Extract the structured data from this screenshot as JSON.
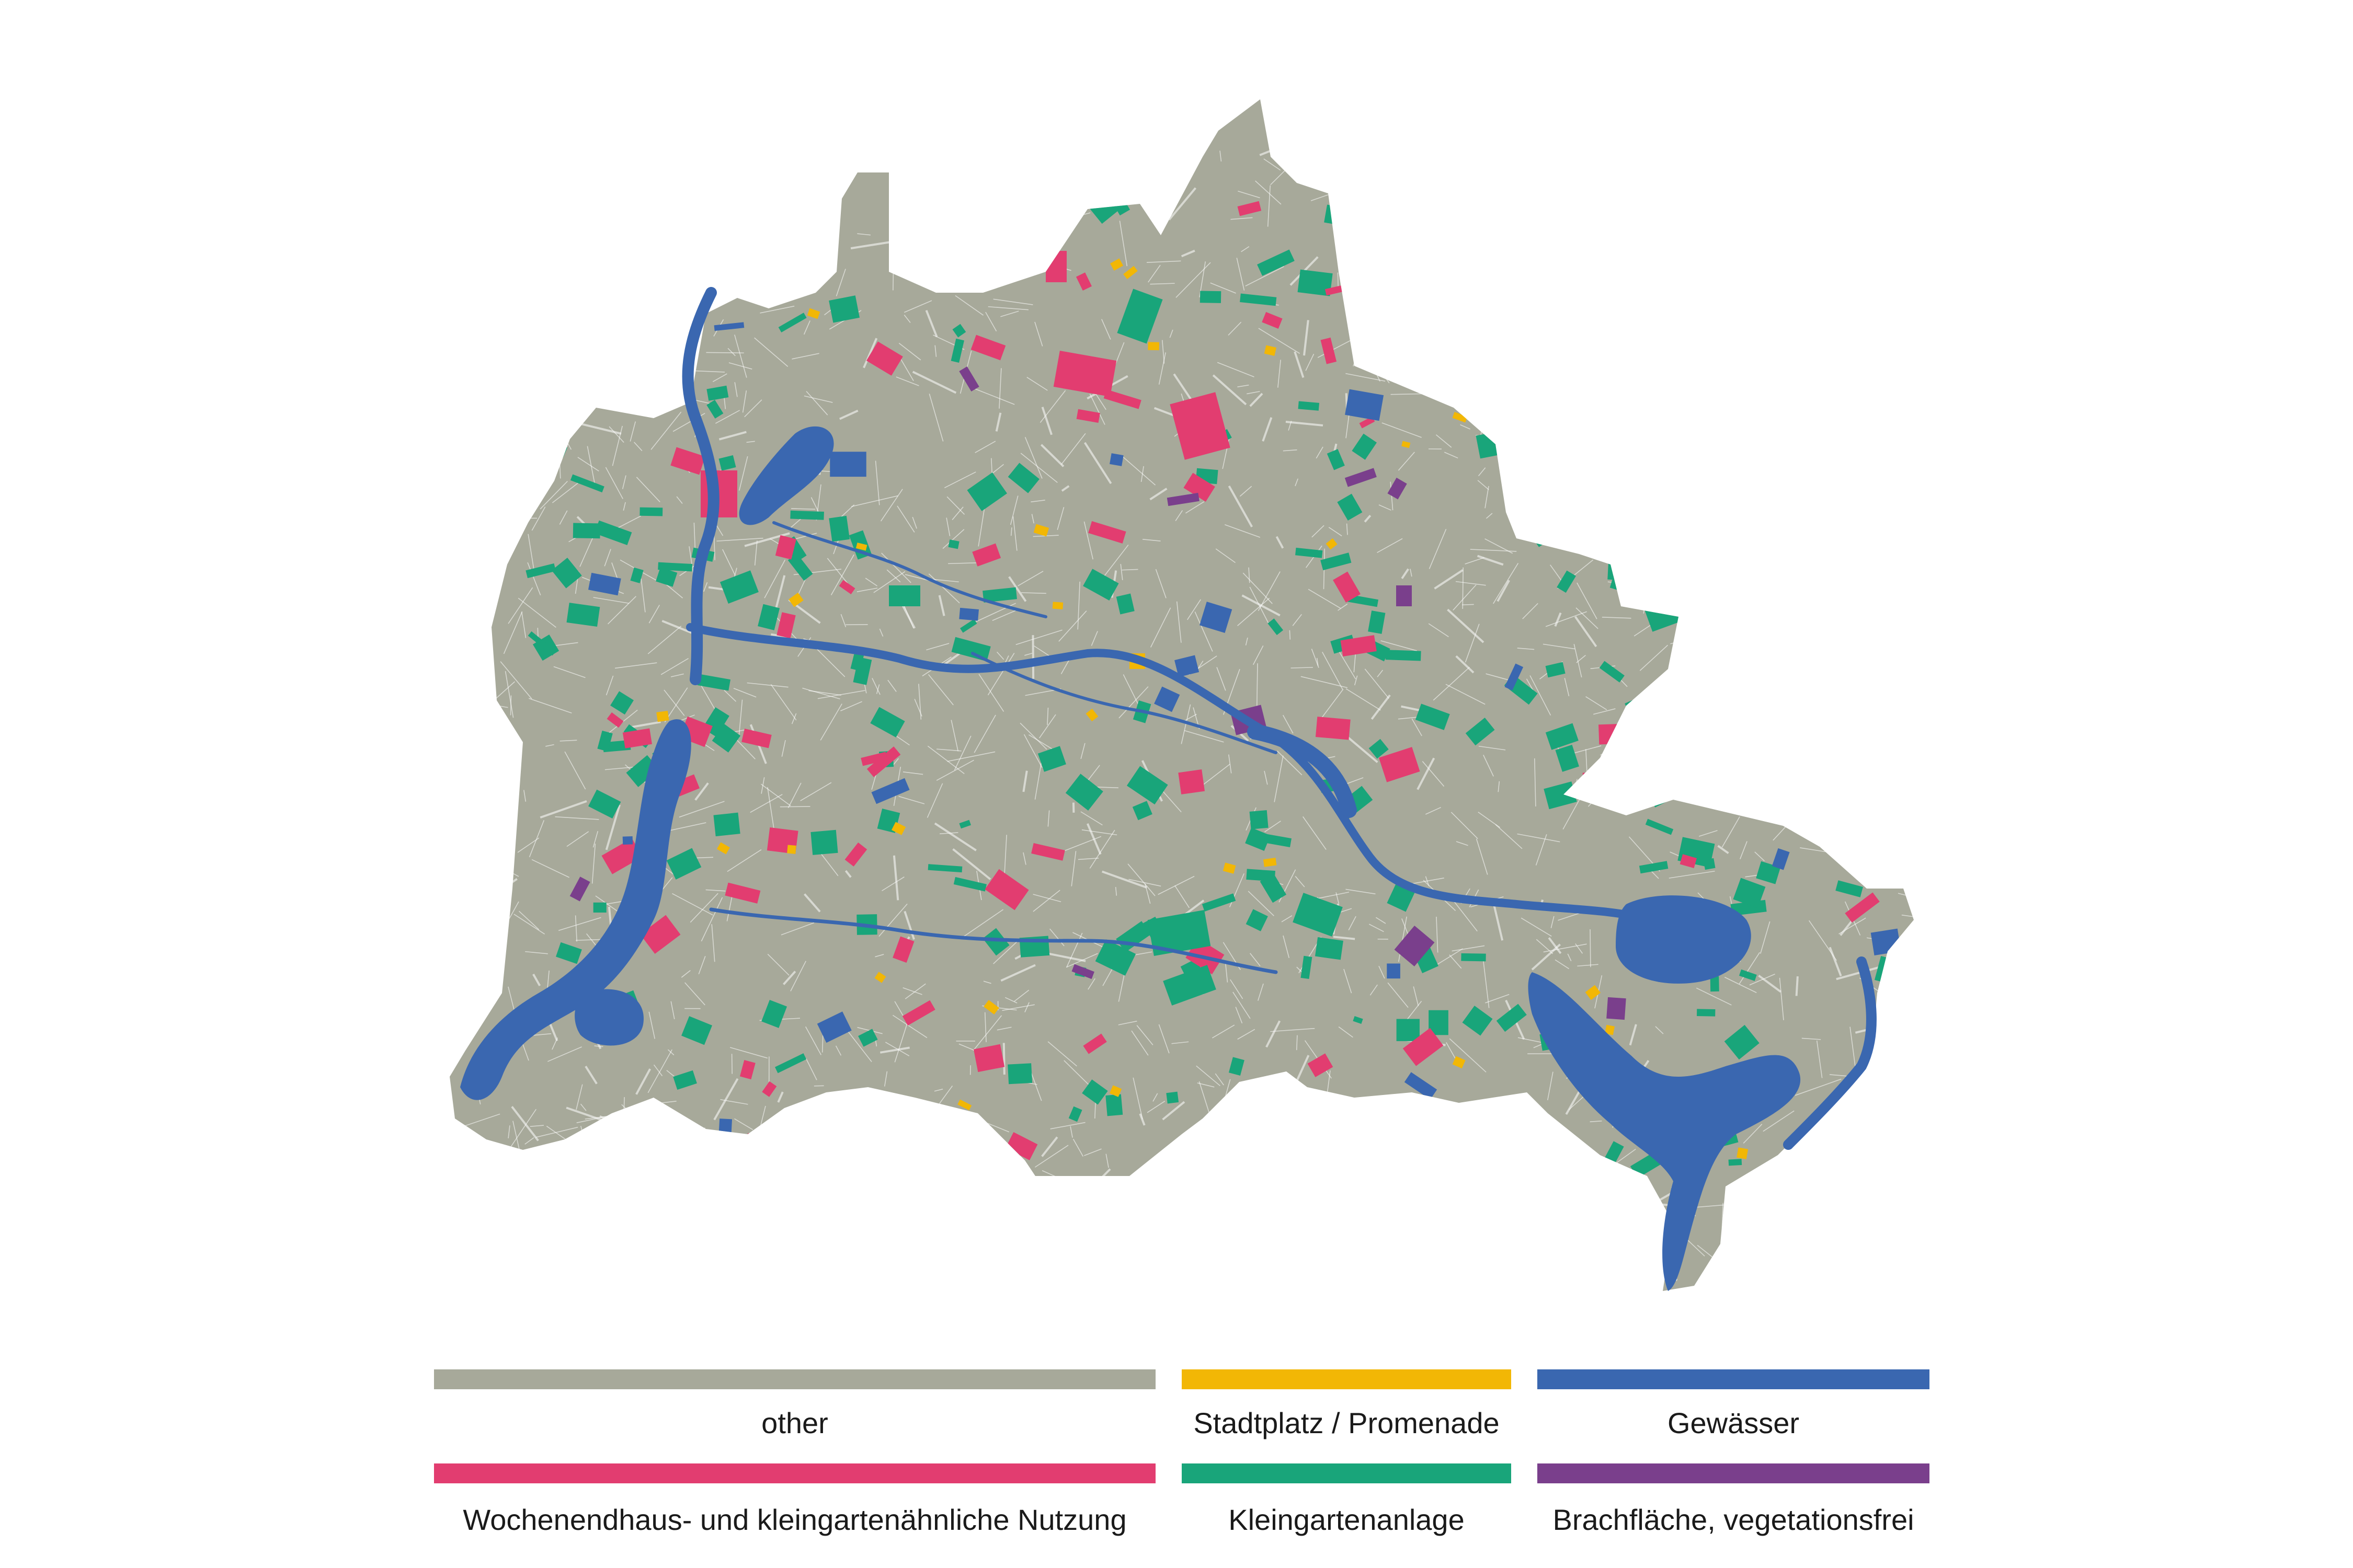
{
  "map": {
    "colors": {
      "other": "#a7a99a",
      "water": "#3a67b0",
      "weekend": "#e23d70",
      "garden": "#19a57a",
      "plaza": "#f2b705",
      "brownfield": "#7a3f8c",
      "roads": "#ffffff"
    }
  },
  "legend": {
    "items": [
      {
        "key": "other",
        "label": "other",
        "color": "#a7a99a"
      },
      {
        "key": "plaza",
        "label": "Stadtplatz / Promenade",
        "color": "#f2b705"
      },
      {
        "key": "water",
        "label": "Gewässer",
        "color": "#3a67b0"
      },
      {
        "key": "weekend",
        "label": "Wochenendhaus- und kleingartenähnliche Nutzung",
        "color": "#e23d70"
      },
      {
        "key": "garden",
        "label": "Kleingartenanlage",
        "color": "#19a57a"
      },
      {
        "key": "brownfield",
        "label": "Brachfläche, vegetationsfrei",
        "color": "#7a3f8c"
      }
    ]
  }
}
